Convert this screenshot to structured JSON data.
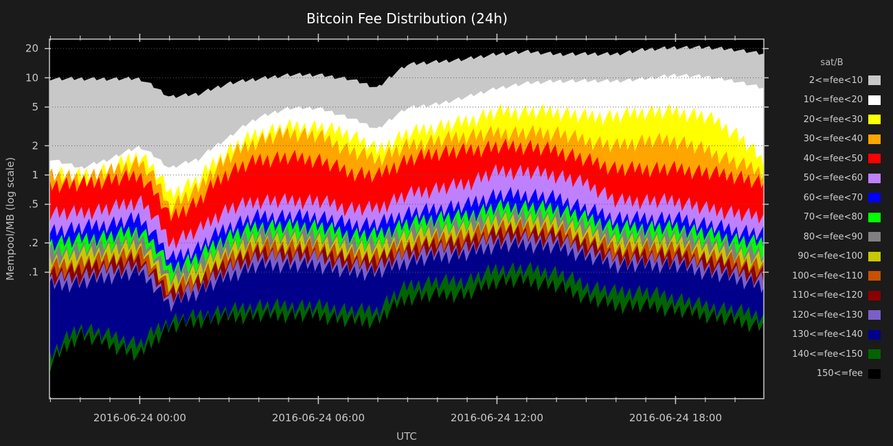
{
  "chart_data": {
    "type": "area",
    "stacked": true,
    "title": "Bitcoin Fee Distribution (24h)",
    "xlabel": "UTC",
    "ylabel": "Mempool/MB (log scale)",
    "y_scale": "log",
    "ylim": [
      0.005,
      25
    ],
    "yticks": [
      {
        "value": 0.1,
        "label": ".1"
      },
      {
        "value": 0.2,
        "label": ".2"
      },
      {
        "value": 0.5,
        "label": ".5"
      },
      {
        "value": 1,
        "label": "1"
      },
      {
        "value": 2,
        "label": "2"
      },
      {
        "value": 5,
        "label": "5"
      },
      {
        "value": 10,
        "label": "10"
      },
      {
        "value": 20,
        "label": "20"
      }
    ],
    "xlim": [
      "2016-06-23 20:58",
      "2016-06-24 20:58"
    ],
    "xticks": [
      {
        "value": "2016-06-24 00:00",
        "label": "2016-06-24 00:00"
      },
      {
        "value": "2016-06-24 06:00",
        "label": "2016-06-24 06:00"
      },
      {
        "value": "2016-06-24 12:00",
        "label": "2016-06-24 12:00"
      },
      {
        "value": "2016-06-24 18:00",
        "label": "2016-06-24 18:00"
      }
    ],
    "grid": "horizontal-dotted",
    "legend_title": "sat/B",
    "legend_position": "right",
    "x": [
      "2016-06-23 21:00",
      "2016-06-23 22:00",
      "2016-06-23 23:00",
      "2016-06-24 00:00",
      "2016-06-24 01:00",
      "2016-06-24 02:00",
      "2016-06-24 03:00",
      "2016-06-24 04:00",
      "2016-06-24 05:00",
      "2016-06-24 06:00",
      "2016-06-24 07:00",
      "2016-06-24 08:00",
      "2016-06-24 09:00",
      "2016-06-24 10:00",
      "2016-06-24 11:00",
      "2016-06-24 12:00",
      "2016-06-24 13:00",
      "2016-06-24 14:00",
      "2016-06-24 15:00",
      "2016-06-24 16:00",
      "2016-06-24 17:00",
      "2016-06-24 18:00",
      "2016-06-24 19:00",
      "2016-06-24 20:00",
      "2016-06-24 20:55"
    ],
    "series": [
      {
        "name": "2<=fee<10",
        "color": "#c8c8c8",
        "values": [
          10,
          10,
          10,
          10,
          6.5,
          7,
          9,
          10,
          11,
          11,
          10,
          8,
          14,
          15,
          16,
          18,
          19,
          18,
          18,
          18,
          20,
          21,
          21,
          20,
          18
        ]
      },
      {
        "name": "10<=fee<20",
        "color": "#ffffff",
        "values": [
          1.5,
          1.2,
          1.5,
          2,
          1.2,
          1.5,
          2.5,
          4,
          5,
          5,
          4,
          3,
          5,
          5.5,
          6.5,
          8,
          9,
          9.5,
          9.5,
          9.5,
          10,
          11,
          10.5,
          9.5,
          8
        ]
      },
      {
        "name": "20<=fee<30",
        "color": "#ffff00",
        "values": [
          1.2,
          1.1,
          1.3,
          1.8,
          0.7,
          1,
          2,
          3,
          3.5,
          3.5,
          3,
          2,
          3,
          3.5,
          4,
          5,
          5,
          5,
          4.5,
          4.5,
          5,
          5,
          4.5,
          3,
          1.5
        ]
      },
      {
        "name": "30<=fee<40",
        "color": "#ffa500",
        "values": [
          1.1,
          1,
          1.2,
          1.5,
          0.5,
          0.8,
          1.7,
          2.5,
          3,
          2.8,
          2,
          1.6,
          2.2,
          2.5,
          2.8,
          3,
          3,
          3,
          2.5,
          2.2,
          2.5,
          2.5,
          2,
          1.5,
          1.2
        ]
      },
      {
        "name": "40<=fee<50",
        "color": "#ff0000",
        "values": [
          0.9,
          0.9,
          1,
          1.1,
          0.4,
          0.6,
          1.2,
          1.6,
          1.7,
          1.6,
          1.2,
          1.1,
          1.6,
          1.9,
          2,
          2.2,
          2.2,
          2,
          1.6,
          1.3,
          1.3,
          1.3,
          1.2,
          1.1,
          0.9
        ]
      },
      {
        "name": "50<=fee<60",
        "color": "#bf80ff",
        "values": [
          0.45,
          0.45,
          0.5,
          0.6,
          0.22,
          0.3,
          0.5,
          0.6,
          0.6,
          0.6,
          0.5,
          0.5,
          0.7,
          0.8,
          0.9,
          1.2,
          1.2,
          1.1,
          0.9,
          0.6,
          0.6,
          0.6,
          0.5,
          0.45,
          0.4
        ]
      },
      {
        "name": "60<=fee<70",
        "color": "#0000ff",
        "values": [
          0.3,
          0.32,
          0.35,
          0.4,
          0.15,
          0.2,
          0.33,
          0.42,
          0.42,
          0.42,
          0.35,
          0.35,
          0.45,
          0.5,
          0.55,
          0.7,
          0.7,
          0.65,
          0.5,
          0.4,
          0.4,
          0.4,
          0.35,
          0.3,
          0.28
        ]
      },
      {
        "name": "70<=fee<80",
        "color": "#00ff00",
        "values": [
          0.22,
          0.24,
          0.26,
          0.3,
          0.12,
          0.16,
          0.26,
          0.33,
          0.33,
          0.33,
          0.27,
          0.27,
          0.35,
          0.4,
          0.42,
          0.52,
          0.52,
          0.5,
          0.4,
          0.32,
          0.32,
          0.32,
          0.28,
          0.24,
          0.22
        ]
      },
      {
        "name": "80<=fee<90",
        "color": "#808080",
        "values": [
          0.18,
          0.2,
          0.22,
          0.25,
          0.1,
          0.14,
          0.22,
          0.28,
          0.28,
          0.28,
          0.23,
          0.23,
          0.3,
          0.34,
          0.36,
          0.44,
          0.44,
          0.42,
          0.34,
          0.27,
          0.27,
          0.27,
          0.24,
          0.2,
          0.18
        ]
      },
      {
        "name": "90<=fee<100",
        "color": "#c8c800",
        "values": [
          0.15,
          0.17,
          0.19,
          0.21,
          0.085,
          0.12,
          0.19,
          0.24,
          0.24,
          0.24,
          0.2,
          0.2,
          0.26,
          0.29,
          0.31,
          0.38,
          0.38,
          0.36,
          0.29,
          0.23,
          0.23,
          0.23,
          0.2,
          0.17,
          0.15
        ]
      },
      {
        "name": "100<=fee<110",
        "color": "#c85000",
        "values": [
          0.13,
          0.14,
          0.16,
          0.18,
          0.075,
          0.1,
          0.16,
          0.21,
          0.21,
          0.21,
          0.17,
          0.17,
          0.22,
          0.25,
          0.27,
          0.33,
          0.33,
          0.31,
          0.25,
          0.2,
          0.2,
          0.2,
          0.17,
          0.15,
          0.13
        ]
      },
      {
        "name": "110<=fee<120",
        "color": "#8b0000",
        "values": [
          0.11,
          0.12,
          0.14,
          0.15,
          0.065,
          0.09,
          0.14,
          0.18,
          0.18,
          0.18,
          0.15,
          0.15,
          0.19,
          0.22,
          0.23,
          0.29,
          0.29,
          0.27,
          0.22,
          0.17,
          0.17,
          0.17,
          0.15,
          0.13,
          0.11
        ]
      },
      {
        "name": "120<=fee<130",
        "color": "#7b5fc8",
        "values": [
          0.095,
          0.1,
          0.12,
          0.13,
          0.058,
          0.08,
          0.12,
          0.16,
          0.16,
          0.16,
          0.13,
          0.13,
          0.17,
          0.19,
          0.2,
          0.25,
          0.25,
          0.24,
          0.19,
          0.15,
          0.15,
          0.15,
          0.13,
          0.11,
          0.095
        ]
      },
      {
        "name": "130<=fee<140",
        "color": "#00008b",
        "values": [
          0.08,
          0.085,
          0.1,
          0.11,
          0.05,
          0.07,
          0.1,
          0.13,
          0.13,
          0.13,
          0.11,
          0.11,
          0.14,
          0.16,
          0.17,
          0.21,
          0.21,
          0.2,
          0.16,
          0.13,
          0.13,
          0.13,
          0.11,
          0.095,
          0.08
        ]
      },
      {
        "name": "140<=fee<150",
        "color": "#006400",
        "values": [
          0.015,
          0.03,
          0.025,
          0.02,
          0.035,
          0.04,
          0.045,
          0.05,
          0.05,
          0.05,
          0.045,
          0.045,
          0.08,
          0.09,
          0.09,
          0.12,
          0.12,
          0.11,
          0.08,
          0.07,
          0.07,
          0.06,
          0.05,
          0.045,
          0.04
        ]
      },
      {
        "name": "150<=fee",
        "color": "#000000",
        "values": [
          0.012,
          0.025,
          0.02,
          0.015,
          0.03,
          0.035,
          0.038,
          0.04,
          0.04,
          0.04,
          0.035,
          0.035,
          0.06,
          0.065,
          0.065,
          0.09,
          0.09,
          0.08,
          0.06,
          0.05,
          0.05,
          0.045,
          0.04,
          0.035,
          0.03
        ]
      }
    ]
  }
}
